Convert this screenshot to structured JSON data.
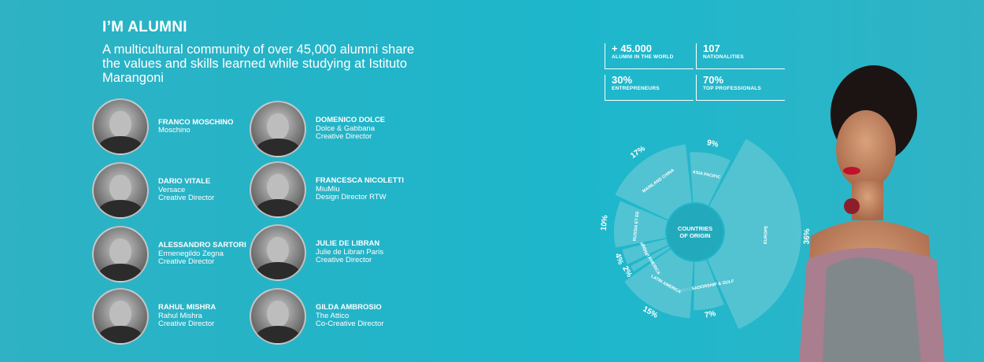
{
  "header": {
    "title": "I’M ALUMNI",
    "intro": "A multicultural community of over 45,000 alumni share the values and skills learned while studying at Istituto Marangoni"
  },
  "alumni": [
    {
      "name": "FRANCO MOSCHINO",
      "line1": "Moschino",
      "line2": ""
    },
    {
      "name": "DOMENICO DOLCE",
      "line1": "Dolce & Gabbana",
      "line2": "Creative Director"
    },
    {
      "name": "DARIO VITALE",
      "line1": "Versace",
      "line2": "Creative Director"
    },
    {
      "name": "FRANCESCA NICOLETTI",
      "line1": "MiuMiu",
      "line2": "Design Director RTW"
    },
    {
      "name": "ALESSANDRO SARTORI",
      "line1": "Ermenegildo Zegna",
      "line2": "Creative Director"
    },
    {
      "name": "JULIE DE LIBRAN",
      "line1": "Julie de Libran Paris",
      "line2": "Creative Director"
    },
    {
      "name": "RAHUL MISHRA",
      "line1": "Rahul Mishra",
      "line2": "Creative Director"
    },
    {
      "name": "GILDA AMBROSIO",
      "line1": "The Attico",
      "line2": "Co-Creative Director"
    }
  ],
  "stats": [
    {
      "value": "+ 45.000",
      "label": "ALUMNI IN THE WORLD"
    },
    {
      "value": "107",
      "label": "NATIONALITIES"
    },
    {
      "value": "30%",
      "label": "ENTREPRENEURS"
    },
    {
      "value": "70%",
      "label": "TOP PROFESSIONALS"
    }
  ],
  "chart_data": {
    "type": "pie",
    "title": "COUNTRIES OF ORIGIN",
    "segments": [
      {
        "label": "ASIA PACIFIC",
        "value": 9,
        "value_label": "9%"
      },
      {
        "label": "EUROPE",
        "value": 36,
        "value_label": "36%"
      },
      {
        "label": "AMBASSADORSHIP & GULF",
        "value": 7,
        "value_label": "7%"
      },
      {
        "label": "LATIN AMERICA",
        "value": 15,
        "value_label": "15%"
      },
      {
        "label": "NORTH AMERICA",
        "value": 2,
        "value_label": "2%"
      },
      {
        "label": "INDIA",
        "value": 4,
        "value_label": "4%"
      },
      {
        "label": "RUSSIA ET EE",
        "value": 10,
        "value_label": "10%"
      },
      {
        "label": "MAINLAND CHINA",
        "value": 17,
        "value_label": "17%"
      }
    ]
  },
  "colors": {
    "background": "#22b4c8",
    "wedge": "#5cc6d4",
    "hole": "#22a9bc"
  }
}
